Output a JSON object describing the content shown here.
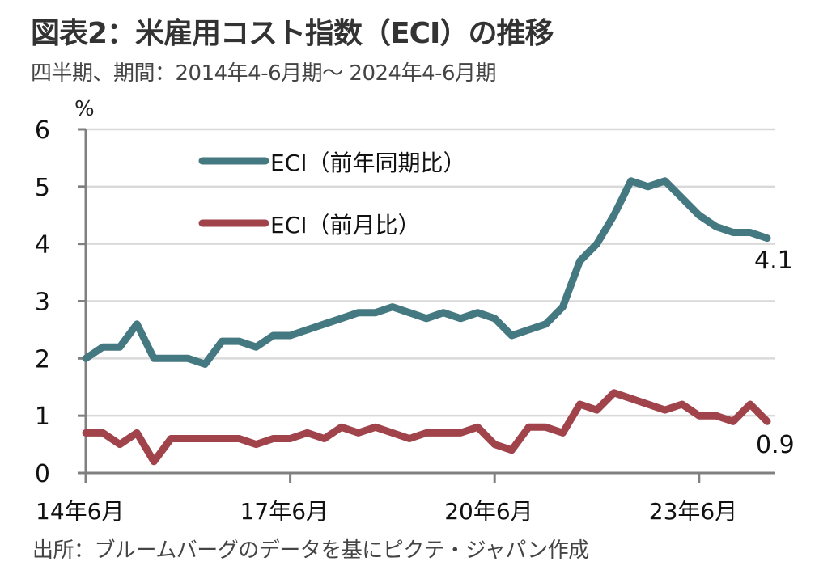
{
  "title": "図表2：米雇用コスト指数（ECI）の推移",
  "subtitle": "四半期、期間：2014年4-6月期～ 2024年4-6月期",
  "source": "出所：ブルームバーグのデータを基にピクテ・ジャパン作成",
  "chart_data": {
    "type": "line",
    "title": "図表2：米雇用コスト指数（ECI）の推移",
    "subtitle": "四半期、期間：2014年4-6月期～ 2024年4-6月期",
    "xlabel": "",
    "ylabel": "%",
    "ylim": [
      0,
      6
    ],
    "yticks": [
      "0",
      "1",
      "2",
      "3",
      "4",
      "5",
      "6"
    ],
    "xtick_labels": [
      {
        "index": 0,
        "label": "14年6月"
      },
      {
        "index": 12,
        "label": "17年6月"
      },
      {
        "index": 24,
        "label": "20年6月"
      },
      {
        "index": 36,
        "label": "23年6月"
      }
    ],
    "grid": true,
    "legend_position": "top-left",
    "n_points": 41,
    "x": [
      "2014Q2",
      "2014Q3",
      "2014Q4",
      "2015Q1",
      "2015Q2",
      "2015Q3",
      "2015Q4",
      "2016Q1",
      "2016Q2",
      "2016Q3",
      "2016Q4",
      "2017Q1",
      "2017Q2",
      "2017Q3",
      "2017Q4",
      "2018Q1",
      "2018Q2",
      "2018Q3",
      "2018Q4",
      "2019Q1",
      "2019Q2",
      "2019Q3",
      "2019Q4",
      "2020Q1",
      "2020Q2",
      "2020Q3",
      "2020Q4",
      "2021Q1",
      "2021Q2",
      "2021Q3",
      "2021Q4",
      "2022Q1",
      "2022Q2",
      "2022Q3",
      "2022Q4",
      "2023Q1",
      "2023Q2",
      "2023Q3",
      "2023Q4",
      "2024Q1",
      "2024Q2"
    ],
    "series": [
      {
        "name": "ECI（前年同期比）",
        "color": "#447981",
        "values": [
          2.0,
          2.2,
          2.2,
          2.6,
          2.0,
          2.0,
          2.0,
          1.9,
          2.3,
          2.3,
          2.2,
          2.4,
          2.4,
          2.5,
          2.6,
          2.7,
          2.8,
          2.8,
          2.9,
          2.8,
          2.7,
          2.8,
          2.7,
          2.8,
          2.7,
          2.4,
          2.5,
          2.6,
          2.9,
          3.7,
          4.0,
          4.5,
          5.1,
          5.0,
          5.1,
          4.8,
          4.5,
          4.3,
          4.2,
          4.2,
          4.1
        ],
        "end_label": "4.1"
      },
      {
        "name": "ECI（前月比）",
        "color": "#A0434A",
        "values": [
          0.7,
          0.7,
          0.5,
          0.7,
          0.2,
          0.6,
          0.6,
          0.6,
          0.6,
          0.6,
          0.5,
          0.6,
          0.6,
          0.7,
          0.6,
          0.8,
          0.7,
          0.8,
          0.7,
          0.6,
          0.7,
          0.7,
          0.7,
          0.8,
          0.5,
          0.4,
          0.8,
          0.8,
          0.7,
          1.2,
          1.1,
          1.4,
          1.3,
          1.2,
          1.1,
          1.2,
          1.0,
          1.0,
          0.9,
          1.2,
          0.9
        ],
        "end_label": "0.9"
      }
    ]
  }
}
